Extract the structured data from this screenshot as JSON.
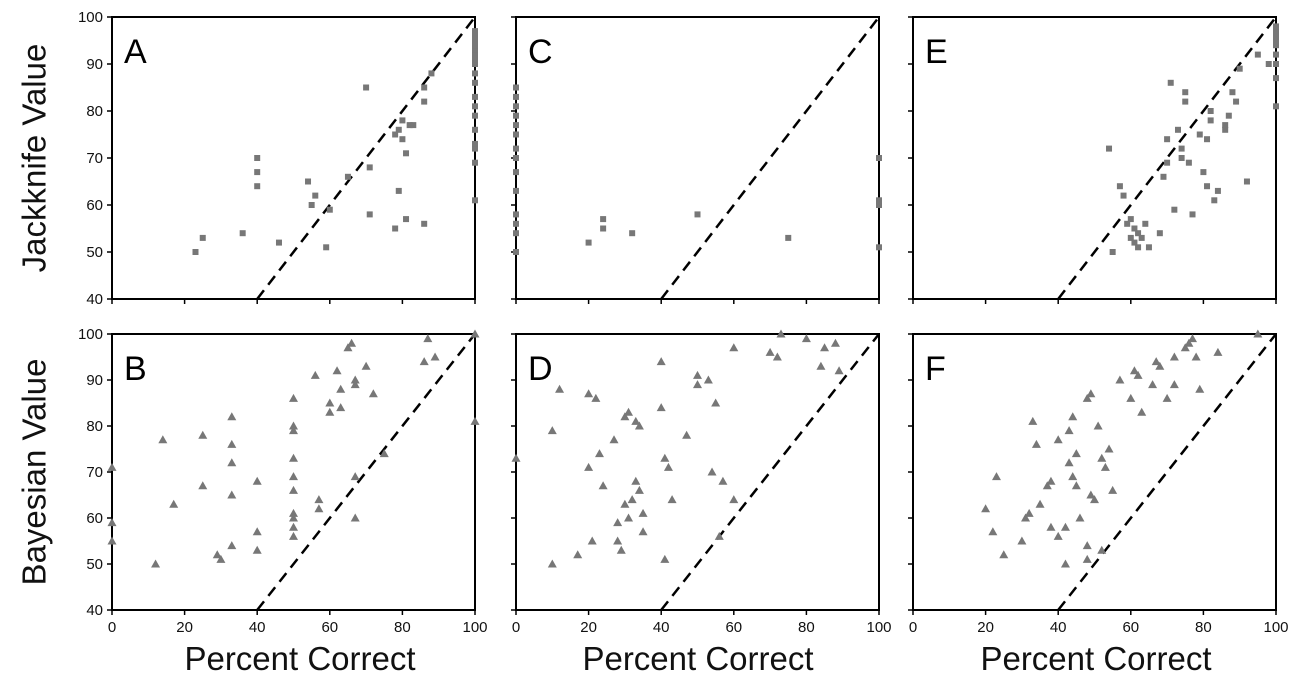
{
  "figure": {
    "ylabel_top": "Jackknife Value",
    "ylabel_bottom": "Bayesian Value",
    "xlabel": "Percent Correct",
    "x_ticks": [
      0,
      20,
      40,
      60,
      80,
      100
    ],
    "y_ticks": [
      40,
      50,
      60,
      70,
      80,
      90,
      100
    ],
    "marker_color": "#777777",
    "reference_line": {
      "from": [
        40,
        40
      ],
      "to": [
        100,
        100
      ],
      "style": "dashed"
    }
  },
  "chart_data": [
    {
      "panel": "A",
      "type": "scatter",
      "marker": "square",
      "xlim": [
        0,
        100
      ],
      "ylim": [
        40,
        100
      ],
      "x": [
        23,
        25,
        36,
        40,
        40,
        40,
        46,
        54,
        55,
        56,
        59,
        60,
        65,
        70,
        71,
        71,
        78,
        78,
        79,
        79,
        80,
        80,
        81,
        81,
        82,
        83,
        86,
        86,
        86,
        88,
        100,
        100,
        100,
        100,
        100,
        100,
        100,
        100,
        100,
        100,
        100,
        100,
        100,
        100,
        100,
        100,
        100,
        100
      ],
      "y": [
        50,
        53,
        54,
        64,
        67,
        70,
        52,
        65,
        60,
        62,
        51,
        59,
        66,
        85,
        68,
        58,
        55,
        75,
        76,
        63,
        78,
        74,
        71,
        57,
        77,
        77,
        56,
        82,
        85,
        88,
        61,
        69,
        72,
        73,
        76,
        79,
        81,
        83,
        86,
        88,
        90,
        91,
        92,
        93,
        94,
        95,
        96,
        97
      ]
    },
    {
      "panel": "B",
      "type": "scatter",
      "marker": "triangle",
      "xlim": [
        0,
        100
      ],
      "ylim": [
        40,
        100
      ],
      "x": [
        0,
        0,
        0,
        12,
        14,
        17,
        25,
        25,
        29,
        30,
        33,
        33,
        33,
        33,
        33,
        40,
        40,
        40,
        50,
        50,
        50,
        50,
        50,
        50,
        50,
        50,
        50,
        50,
        56,
        57,
        57,
        60,
        60,
        62,
        63,
        63,
        65,
        66,
        67,
        67,
        67,
        67,
        70,
        72,
        75,
        86,
        87,
        89,
        100,
        100
      ],
      "y": [
        71,
        59,
        55,
        50,
        77,
        63,
        78,
        67,
        52,
        51,
        82,
        76,
        72,
        65,
        54,
        68,
        57,
        53,
        86,
        80,
        79,
        73,
        66,
        61,
        58,
        56,
        69,
        60,
        91,
        64,
        62,
        83,
        85,
        92,
        88,
        84,
        97,
        98,
        90,
        89,
        69,
        60,
        93,
        87,
        74,
        94,
        99,
        95,
        100,
        81
      ]
    },
    {
      "panel": "C",
      "type": "scatter",
      "marker": "square",
      "xlim": [
        0,
        100
      ],
      "ylim": [
        40,
        100
      ],
      "x": [
        0,
        0,
        0,
        0,
        0,
        0,
        0,
        0,
        0,
        0,
        0,
        0,
        0,
        0,
        20,
        24,
        24,
        32,
        50,
        75,
        100,
        100,
        100,
        100
      ],
      "y": [
        50,
        54,
        56,
        58,
        63,
        67,
        70,
        72,
        75,
        77,
        79,
        81,
        83,
        85,
        52,
        55,
        57,
        54,
        58,
        53,
        70,
        60,
        61,
        51
      ]
    },
    {
      "panel": "D",
      "type": "scatter",
      "marker": "triangle",
      "xlim": [
        0,
        100
      ],
      "ylim": [
        40,
        100
      ],
      "x": [
        0,
        10,
        10,
        12,
        17,
        20,
        20,
        21,
        22,
        23,
        24,
        27,
        28,
        28,
        29,
        30,
        30,
        31,
        31,
        32,
        33,
        33,
        34,
        34,
        35,
        35,
        40,
        40,
        41,
        41,
        42,
        43,
        47,
        50,
        50,
        53,
        54,
        55,
        56,
        57,
        60,
        60,
        70,
        72,
        73,
        80,
        84,
        85,
        88,
        89
      ],
      "y": [
        73,
        79,
        50,
        88,
        52,
        87,
        71,
        55,
        86,
        74,
        67,
        77,
        59,
        55,
        53,
        82,
        63,
        83,
        60,
        64,
        81,
        68,
        66,
        80,
        57,
        61,
        94,
        84,
        51,
        73,
        71,
        64,
        78,
        91,
        89,
        90,
        70,
        85,
        56,
        68,
        97,
        64,
        96,
        95,
        100,
        99,
        93,
        97,
        98,
        92
      ]
    },
    {
      "panel": "E",
      "type": "scatter",
      "marker": "square",
      "xlim": [
        0,
        100
      ],
      "ylim": [
        40,
        100
      ],
      "x": [
        54,
        55,
        57,
        58,
        59,
        60,
        60,
        61,
        61,
        62,
        62,
        63,
        64,
        65,
        68,
        69,
        70,
        70,
        71,
        72,
        73,
        74,
        74,
        75,
        75,
        76,
        77,
        79,
        80,
        81,
        81,
        82,
        82,
        83,
        84,
        86,
        86,
        87,
        88,
        89,
        90,
        92,
        95,
        98,
        100,
        100,
        100,
        100,
        100,
        100,
        100,
        100,
        100
      ],
      "y": [
        72,
        50,
        64,
        62,
        56,
        57,
        53,
        55,
        52,
        51,
        54,
        53,
        56,
        51,
        54,
        66,
        69,
        74,
        86,
        59,
        76,
        70,
        72,
        84,
        82,
        69,
        58,
        75,
        67,
        74,
        64,
        80,
        78,
        61,
        63,
        76,
        77,
        79,
        84,
        82,
        89,
        65,
        92,
        90,
        81,
        87,
        90,
        92,
        94,
        95,
        96,
        97,
        98
      ]
    },
    {
      "panel": "F",
      "type": "scatter",
      "marker": "triangle",
      "xlim": [
        0,
        100
      ],
      "ylim": [
        40,
        100
      ],
      "x": [
        20,
        22,
        23,
        25,
        30,
        31,
        32,
        33,
        34,
        35,
        37,
        38,
        38,
        40,
        40,
        42,
        42,
        43,
        43,
        44,
        44,
        45,
        45,
        46,
        48,
        48,
        48,
        49,
        49,
        50,
        51,
        52,
        52,
        53,
        54,
        55,
        57,
        60,
        61,
        62,
        63,
        66,
        67,
        68,
        70,
        72,
        72,
        75,
        76,
        77,
        78,
        79,
        84,
        95
      ],
      "y": [
        62,
        57,
        69,
        52,
        55,
        60,
        61,
        81,
        76,
        63,
        67,
        58,
        68,
        56,
        77,
        50,
        58,
        79,
        72,
        82,
        69,
        74,
        67,
        60,
        86,
        54,
        51,
        65,
        87,
        64,
        80,
        73,
        53,
        71,
        75,
        66,
        90,
        86,
        92,
        91,
        83,
        89,
        94,
        93,
        86,
        95,
        89,
        97,
        98,
        99,
        95,
        88,
        96,
        100
      ]
    }
  ]
}
